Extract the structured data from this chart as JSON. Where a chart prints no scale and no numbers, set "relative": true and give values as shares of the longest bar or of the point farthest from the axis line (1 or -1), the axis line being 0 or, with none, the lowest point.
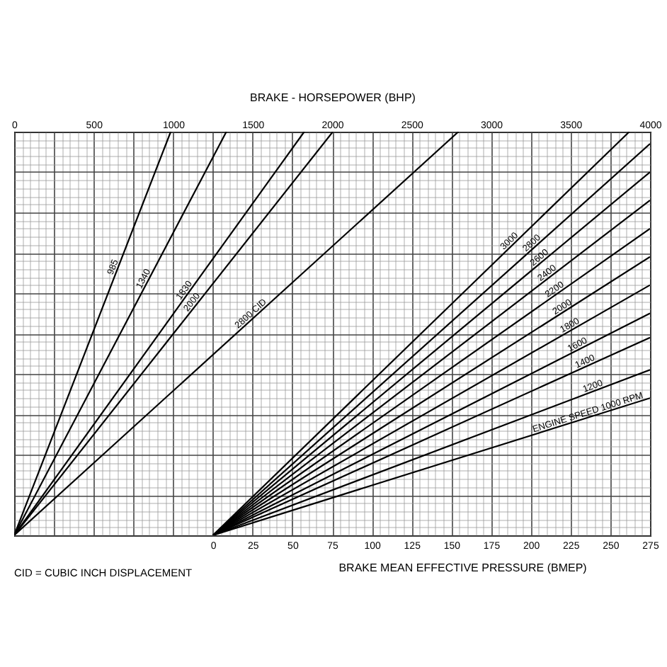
{
  "chart_data": {
    "type": "line",
    "relative": true,
    "x2label": "BRAKE - HORSEPOWER (BHP)",
    "xlabel": "BRAKE MEAN EFFECTIVE PRESSURE (BMEP)",
    "annotations": [
      "CID = CUBIC INCH DISPLACEMENT"
    ],
    "xlim": [
      -125,
      275
    ],
    "xticks": [
      0,
      25,
      50,
      75,
      100,
      125,
      150,
      175,
      200,
      225,
      250,
      275
    ],
    "x2lim": [
      0,
      4000
    ],
    "x2ticks": [
      0,
      500,
      1000,
      1500,
      2000,
      2500,
      3000,
      3500,
      4000
    ],
    "grid": true,
    "series": [
      {
        "name": "985",
        "axis": "x2",
        "color": "#000000",
        "x": [
          0,
          985
        ],
        "values": [
          0,
          1
        ]
      },
      {
        "name": "1340",
        "axis": "x2",
        "color": "#000000",
        "x": [
          0,
          1335
        ],
        "values": [
          0,
          1
        ]
      },
      {
        "name": "1830",
        "axis": "x2",
        "color": "#000000",
        "x": [
          0,
          1825
        ],
        "values": [
          0,
          1
        ]
      },
      {
        "name": "2000",
        "axis": "x2",
        "color": "#000000",
        "x": [
          0,
          2005
        ],
        "values": [
          0,
          1
        ]
      },
      {
        "name": "2800 CID",
        "axis": "x2",
        "color": "#000000",
        "x": [
          0,
          2795
        ],
        "values": [
          0,
          1
        ]
      },
      {
        "name": "3000",
        "color": "#000000",
        "x": [
          0,
          262
        ],
        "values": [
          0,
          1
        ]
      },
      {
        "name": "2800",
        "color": "#000000",
        "x": [
          0,
          275
        ],
        "values": [
          0,
          0.97
        ]
      },
      {
        "name": "2600",
        "color": "#000000",
        "x": [
          0,
          275
        ],
        "values": [
          0,
          0.9
        ]
      },
      {
        "name": "2400",
        "color": "#000000",
        "x": [
          0,
          275
        ],
        "values": [
          0,
          0.83
        ]
      },
      {
        "name": "2200",
        "color": "#000000",
        "x": [
          0,
          275
        ],
        "values": [
          0,
          0.76
        ]
      },
      {
        "name": "2000",
        "color": "#000000",
        "x": [
          0,
          275
        ],
        "values": [
          0,
          0.69
        ]
      },
      {
        "name": "1800",
        "color": "#000000",
        "x": [
          0,
          275
        ],
        "values": [
          0,
          0.62
        ]
      },
      {
        "name": "1600",
        "color": "#000000",
        "x": [
          0,
          275
        ],
        "values": [
          0,
          0.55
        ]
      },
      {
        "name": "1400",
        "color": "#000000",
        "x": [
          0,
          275
        ],
        "values": [
          0,
          0.49
        ]
      },
      {
        "name": "1200",
        "color": "#000000",
        "x": [
          0,
          275
        ],
        "values": [
          0,
          0.41
        ]
      },
      {
        "name": "ENGINE SPEED 1000 RPM",
        "color": "#000000",
        "x": [
          0,
          275
        ],
        "values": [
          0,
          0.34
        ]
      }
    ]
  }
}
